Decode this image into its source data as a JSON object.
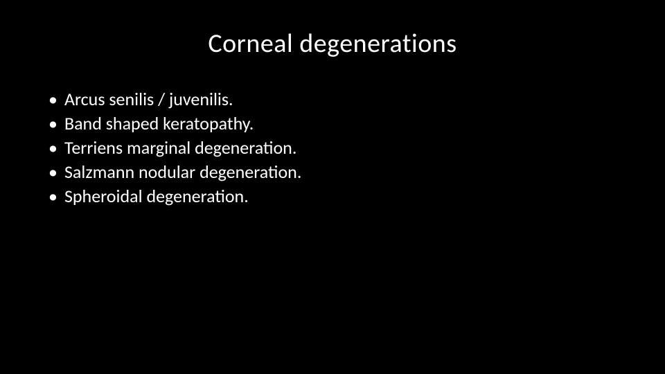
{
  "slide": {
    "background_color": "#000000",
    "text_color": "#ffffff",
    "title": "Corneal degenerations",
    "title_fontsize": 38,
    "bullet_fontsize": 26,
    "bullet_marker": "•",
    "bullets": [
      "Arcus senilis / juvenilis.",
      "Band shaped keratopathy.",
      "Terriens marginal degeneration.",
      "Salzmann nodular degeneration.",
      "Spheroidal degeneration."
    ]
  }
}
